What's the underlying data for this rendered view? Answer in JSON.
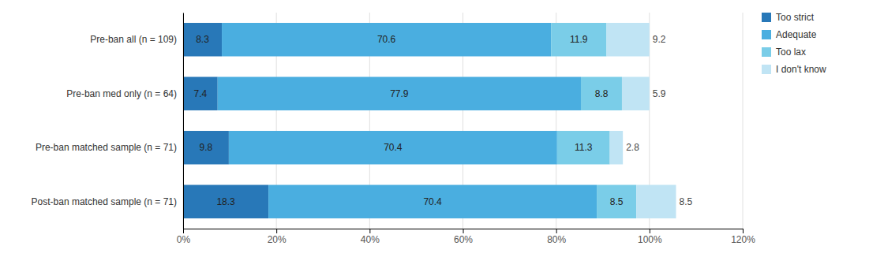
{
  "chart_data": {
    "type": "bar",
    "orientation": "horizontal",
    "stacked": true,
    "data_labels": true,
    "grid": true,
    "legend": "right",
    "categories": [
      "Post-ban matched sample (n = 71)",
      "Pre-ban matched sample (n = 71)",
      "Pre-ban med only (n = 64)",
      "Pre-ban all (n = 109)"
    ],
    "series": [
      {
        "name": "Too strict",
        "color": "#2878b8",
        "values": [
          18.3,
          9.8,
          7.4,
          8.3
        ]
      },
      {
        "name": "Adequate",
        "color": "#4aaee0",
        "values": [
          70.4,
          70.4,
          77.9,
          70.6
        ]
      },
      {
        "name": "Too lax",
        "color": "#7acde8",
        "values": [
          8.5,
          11.3,
          8.8,
          11.9
        ]
      },
      {
        "name": "I don't know",
        "color": "#c0e4f4",
        "values": [
          8.5,
          2.8,
          5.9,
          9.2
        ]
      }
    ],
    "xlim": [
      0,
      120
    ],
    "xticks": [
      {
        "value": 0,
        "label": "0%"
      },
      {
        "value": 20,
        "label": "20%"
      },
      {
        "value": 40,
        "label": "40%"
      },
      {
        "value": 60,
        "label": "60%"
      },
      {
        "value": 80,
        "label": "80%"
      },
      {
        "value": 100,
        "label": "100%"
      },
      {
        "value": 120,
        "label": "120%"
      }
    ]
  }
}
